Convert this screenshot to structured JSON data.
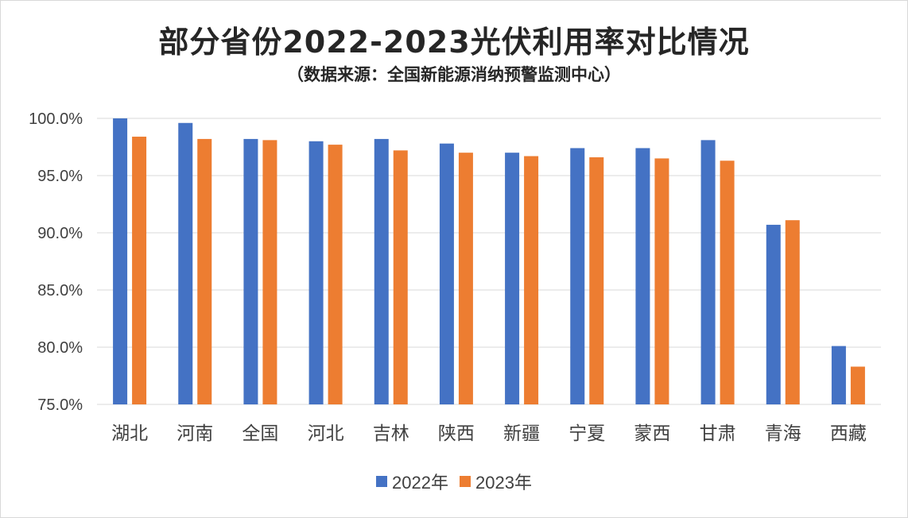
{
  "colors": {
    "series_2022": "#4472C4",
    "series_2023": "#ED7D31",
    "grid": "#d9d9d9"
  },
  "chart_data": {
    "type": "bar",
    "title": "部分省份2022-2023光伏利用率对比情况",
    "subtitle": "（数据来源：全国新能源消纳预警监测中心）",
    "categories": [
      "湖北",
      "河南",
      "全国",
      "河北",
      "吉林",
      "陕西",
      "新疆",
      "宁夏",
      "蒙西",
      "甘肃",
      "青海",
      "西藏"
    ],
    "series": [
      {
        "name": "2022年",
        "values": [
          100.0,
          99.6,
          98.2,
          98.0,
          98.2,
          97.8,
          97.0,
          97.4,
          97.4,
          98.1,
          90.7,
          80.1
        ]
      },
      {
        "name": "2023年",
        "values": [
          98.4,
          98.2,
          98.1,
          97.7,
          97.2,
          97.0,
          96.7,
          96.6,
          96.5,
          96.3,
          91.1,
          78.3
        ]
      }
    ],
    "yticks": [
      "75.0%",
      "80.0%",
      "85.0%",
      "90.0%",
      "95.0%",
      "100.0%"
    ],
    "ylim": [
      75,
      100
    ],
    "grid": true,
    "legend": "bottom"
  }
}
